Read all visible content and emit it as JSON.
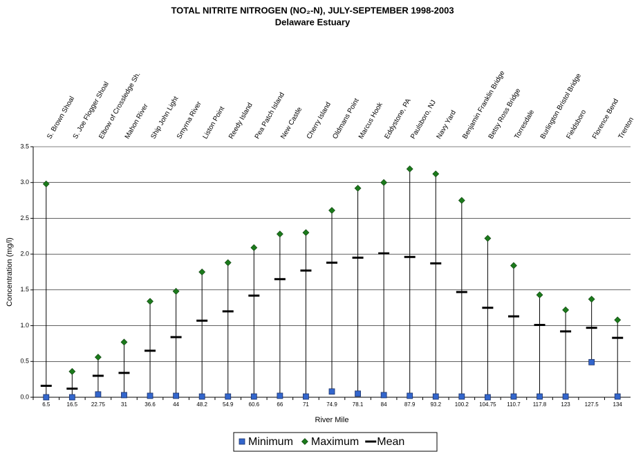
{
  "chart_data": {
    "type": "highlow",
    "title": "TOTAL NITRITE NITROGEN (NO₂-N), JULY-SEPTEMBER 1998-2003",
    "subtitle": "Delaware Estuary",
    "x_label": "River Mile",
    "y_label": "Concentration (mg/l)",
    "categories": [
      "6.5",
      "16.5",
      "22.75",
      "31",
      "36.6",
      "44",
      "48.2",
      "54.9",
      "60.6",
      "66",
      "71",
      "74.9",
      "78.1",
      "84",
      "87.9",
      "93.2",
      "100.2",
      "104.75",
      "110.7",
      "117.8",
      "123",
      "127.5",
      "134"
    ],
    "stations": [
      "S. Brown Shoal",
      "S. Joe Flogger Shoal",
      "Elbow of Crossledge Sh.",
      "Mahon River",
      "Ship John Light",
      "Smyrna River",
      "Liston Point",
      "Reedy Island",
      "Pea Patch Island",
      "New Castle",
      "Cherry Island",
      "Oldmans Point",
      "Marcus Hook",
      "Eddystone, PA",
      "Paulsboro, NJ",
      "Navy Yard",
      "Benjamin Franklin Bridge",
      "Betsy Ross Bridge",
      "Torresdale",
      "Burlington Bristol Bridge",
      "Fieldsboro",
      "Florence Bend",
      "Trenton"
    ],
    "series": [
      {
        "name": "Minimum",
        "color": "#3366cc",
        "marker": "square",
        "values": [
          0.0,
          0.0,
          0.04,
          0.03,
          0.02,
          0.02,
          0.01,
          0.01,
          0.01,
          0.02,
          0.01,
          0.08,
          0.05,
          0.03,
          0.02,
          0.01,
          0.01,
          0.0,
          0.01,
          0.01,
          0.01,
          0.49,
          0.01
        ]
      },
      {
        "name": "Maximum",
        "color": "#1b7a1b",
        "marker": "diamond",
        "values": [
          2.98,
          0.36,
          0.56,
          0.77,
          1.34,
          1.48,
          1.75,
          1.88,
          2.09,
          2.28,
          2.3,
          2.61,
          2.92,
          3.0,
          3.19,
          3.12,
          2.75,
          2.22,
          1.84,
          1.43,
          1.22,
          1.37,
          1.08
        ]
      },
      {
        "name": "Mean",
        "color": "#000000",
        "marker": "dash",
        "values": [
          0.16,
          0.12,
          0.3,
          0.34,
          0.65,
          0.84,
          1.07,
          1.2,
          1.42,
          1.65,
          1.77,
          1.88,
          1.95,
          2.01,
          1.96,
          1.87,
          1.47,
          1.25,
          1.13,
          1.01,
          0.92,
          0.97,
          0.83
        ]
      }
    ],
    "ylim": [
      0,
      3.5
    ],
    "yticks": [
      {
        "value": 0,
        "label": "0.0"
      },
      0.5,
      {
        "value": 1,
        "label": "1.0"
      },
      1.5,
      {
        "value": 2,
        "label": "2.0"
      },
      2.5,
      {
        "value": 3,
        "label": "3.0"
      },
      3.5
    ],
    "grid": true,
    "legend": "bottom"
  }
}
